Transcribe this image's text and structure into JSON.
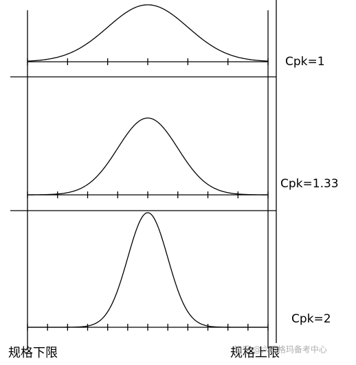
{
  "panels": [
    {
      "label": "Cpk=1"
    },
    {
      "label": "Cpk=1.33"
    },
    {
      "label": "Cpk=2"
    }
  ],
  "lower_limit": "规格下限",
  "upper_limit": "规格上限",
  "watermark": "知乎 @六西格玛备考中心"
}
